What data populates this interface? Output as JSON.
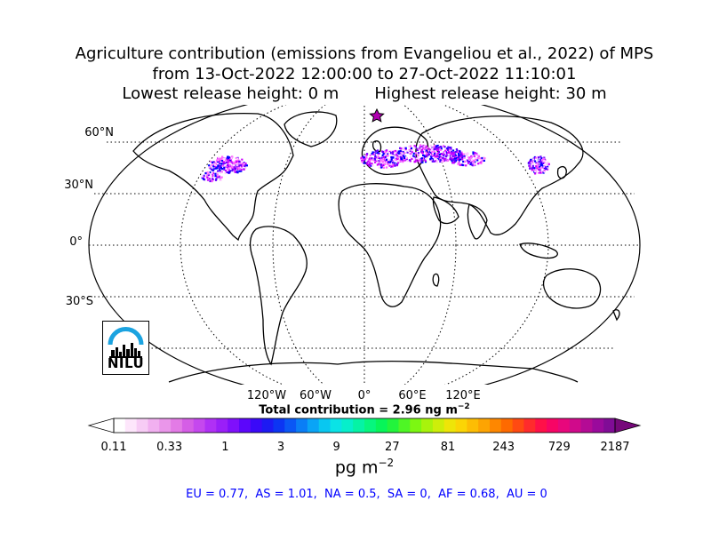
{
  "title": {
    "line1": "Agriculture contribution (emissions from Evangeliou et al., 2022) of MPS",
    "line2": "from 13-Oct-2022 12:00:00 to 27-Oct-2022 11:10:01",
    "line3": "Lowest release height: 0 m       Highest release height: 30 m"
  },
  "map": {
    "lat_labels": [
      "60°N",
      "30°N",
      "0°",
      "30°S"
    ],
    "lon_labels": [
      "120°W",
      "60°W",
      "0°",
      "60°E",
      "120°E"
    ],
    "receptor_marker": "star-icon",
    "plume_colors": [
      "#ff66ff",
      "#cc00ff",
      "#6600ff",
      "#0000ff",
      "#ffccff"
    ]
  },
  "total_contribution": "Total contribution = 2.96 ng m",
  "total_exponent": "−2",
  "colorbar": {
    "tick_labels": [
      "0.11",
      "0.33",
      "1",
      "3",
      "9",
      "27",
      "81",
      "243",
      "729",
      "2187"
    ],
    "unit_base": "pg m",
    "unit_exponent": "−2",
    "colors": [
      "#ffffff",
      "#fde6fb",
      "#f7ccf5",
      "#f1b0f0",
      "#ea96ea",
      "#e37be6",
      "#d55ee6",
      "#c548ee",
      "#b030f5",
      "#9a1ff8",
      "#7f10fb",
      "#5c06fb",
      "#3a09f8",
      "#1d1af3",
      "#0c35f3",
      "#0a57f5",
      "#0a7ef6",
      "#0aa4f6",
      "#09c7f0",
      "#0ae3e6",
      "#06efcb",
      "#05f3a5",
      "#06f67e",
      "#07f559",
      "#22f43c",
      "#4ef625",
      "#7cf712",
      "#a8f30c",
      "#cdee0a",
      "#eee508",
      "#fbd505",
      "#fdbd04",
      "#fda402",
      "#fe8700",
      "#fe6a00",
      "#ff4a12",
      "#ff2b2c",
      "#ff1048",
      "#f70565",
      "#e8077c",
      "#d00a8b",
      "#b40b95",
      "#9a0a9c",
      "#800c96"
    ],
    "over_color": "#76087a"
  },
  "regions": "EU = 0.77,  AS = 1.01,  NA = 0.5,  SA = 0,  AF = 0.68,  AU = 0",
  "logo": {
    "text": "NILU",
    "arc_color": "#1ba3e0"
  }
}
